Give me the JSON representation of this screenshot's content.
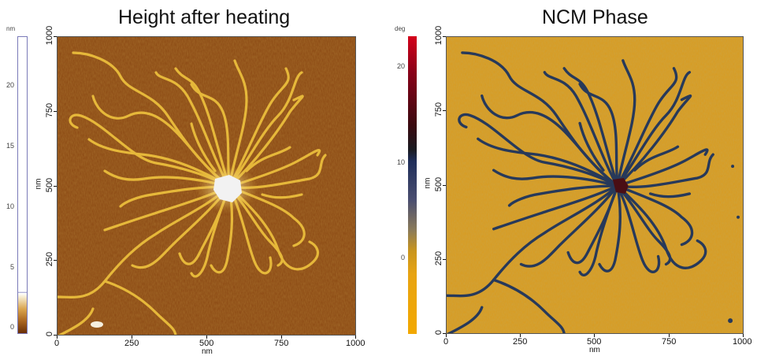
{
  "panels": [
    {
      "title": "Height after heating",
      "colorbar_unit": "nm",
      "colorbar_ticks": [
        "20",
        "15",
        "10",
        "5",
        "0"
      ],
      "x_ticks": [
        "0",
        "250",
        "500",
        "750",
        "1000"
      ],
      "y_ticks": [
        "0",
        "250",
        "500",
        "750",
        "1000"
      ],
      "x_label": "nm",
      "y_label": "nm"
    },
    {
      "title": "NCM Phase",
      "colorbar_unit": "deg",
      "colorbar_ticks": [
        "20",
        "10",
        "0"
      ],
      "x_ticks": [
        "0",
        "250",
        "500",
        "750",
        "1000"
      ],
      "y_ticks": [
        "0",
        "250",
        "500",
        "750",
        "1000"
      ],
      "x_label": "nm",
      "y_label": "nm"
    }
  ],
  "colors": {
    "height_background": "#8a4712",
    "height_fibril": "#e6b83a",
    "height_core": "#f4f4f4",
    "phase_background": "#d99b1f",
    "phase_fibril": "#27395a",
    "phase_core": "#4a0e14"
  }
}
